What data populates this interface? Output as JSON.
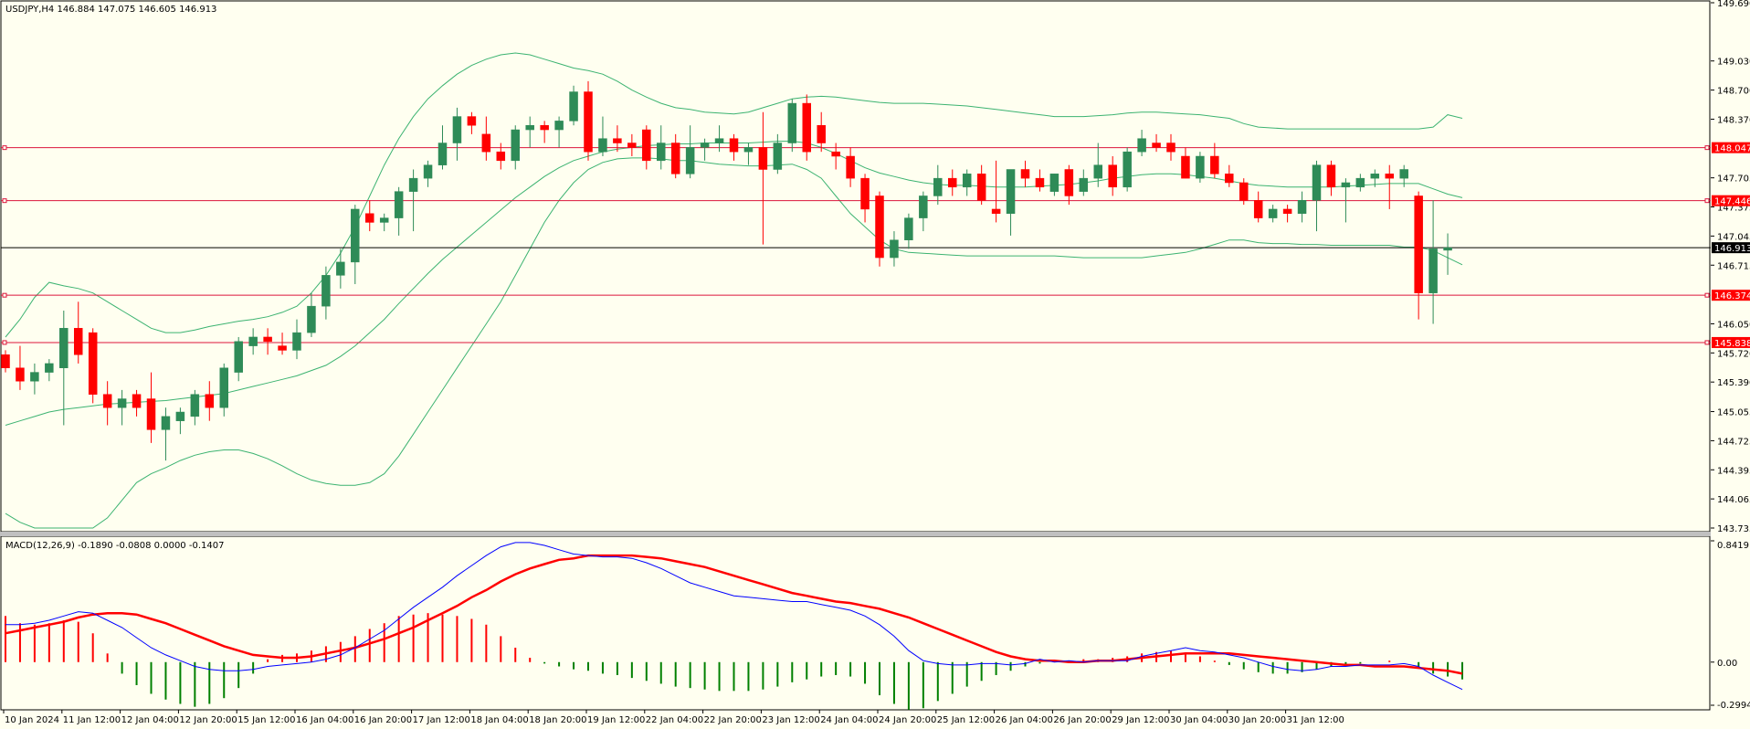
{
  "window": {
    "header": "USDJPY,H4  146.884 147.075 146.605 146.913",
    "macd_header": "MACD(12,26,9) -0.1890 -0.0808 0.0000 -0.1407"
  },
  "colors": {
    "background": "#FFFFF0",
    "bull": "#2E8B57",
    "bear": "#FF0000",
    "bands": "#3CB371",
    "hline": "#DC143C",
    "tag_bg": "#FF0000",
    "current_bg": "#000000",
    "macd_main": "#0000FF",
    "macd_signal": "#FF0000",
    "hist_pos": "#FF0000",
    "hist_neg": "#008000"
  },
  "chart_data": {
    "type": "candlestick",
    "symbol": "USDJPY",
    "timeframe": "H4",
    "ylim": [
      143.735,
      149.69
    ],
    "price_ticks": [
      "149.690",
      "149.030",
      "148.700",
      "148.370",
      "147.705",
      "147.375",
      "147.045",
      "146.715",
      "146.050",
      "145.720",
      "145.390",
      "145.055",
      "144.725",
      "144.395",
      "144.065",
      "143.735"
    ],
    "horizontal_levels": [
      {
        "value": 148.047,
        "label": "148.047"
      },
      {
        "value": 147.446,
        "label": "147.446"
      },
      {
        "value": 146.374,
        "label": "146.374"
      },
      {
        "value": 145.838,
        "label": "145.838"
      }
    ],
    "current_price": {
      "value": 146.913,
      "label": "146.913"
    },
    "time_labels": [
      "10 Jan 2024",
      "11 Jan 12:00",
      "12 Jan 04:00",
      "12 Jan 20:00",
      "15 Jan 12:00",
      "16 Jan 04:00",
      "16 Jan 20:00",
      "17 Jan 12:00",
      "18 Jan 04:00",
      "18 Jan 20:00",
      "19 Jan 12:00",
      "22 Jan 04:00",
      "22 Jan 20:00",
      "23 Jan 12:00",
      "24 Jan 04:00",
      "24 Jan 20:00",
      "25 Jan 12:00",
      "26 Jan 04:00",
      "26 Jan 20:00",
      "29 Jan 12:00",
      "30 Jan 04:00",
      "30 Jan 20:00",
      "31 Jan 12:00"
    ],
    "candles": [
      [
        145.7,
        145.75,
        145.5,
        145.55
      ],
      [
        145.55,
        145.8,
        145.3,
        145.4
      ],
      [
        145.4,
        145.6,
        145.25,
        145.5
      ],
      [
        145.5,
        145.65,
        145.4,
        145.6
      ],
      [
        145.55,
        146.2,
        144.9,
        146.0
      ],
      [
        146.0,
        146.3,
        145.6,
        145.7
      ],
      [
        145.95,
        146.0,
        145.15,
        145.25
      ],
      [
        145.25,
        145.4,
        144.9,
        145.1
      ],
      [
        145.1,
        145.3,
        144.9,
        145.2
      ],
      [
        145.25,
        145.3,
        145.0,
        145.1
      ],
      [
        145.2,
        145.5,
        144.7,
        144.85
      ],
      [
        144.85,
        145.1,
        144.5,
        145.0
      ],
      [
        144.95,
        145.1,
        144.8,
        145.05
      ],
      [
        145.0,
        145.3,
        144.9,
        145.25
      ],
      [
        145.25,
        145.4,
        144.95,
        145.1
      ],
      [
        145.1,
        145.6,
        145.0,
        145.55
      ],
      [
        145.5,
        145.9,
        145.4,
        145.85
      ],
      [
        145.8,
        146.0,
        145.7,
        145.9
      ],
      [
        145.9,
        146.0,
        145.7,
        145.85
      ],
      [
        145.8,
        145.95,
        145.7,
        145.75
      ],
      [
        145.75,
        146.1,
        145.65,
        145.95
      ],
      [
        145.95,
        146.4,
        145.9,
        146.25
      ],
      [
        146.25,
        146.7,
        146.1,
        146.6
      ],
      [
        146.6,
        146.9,
        146.45,
        146.75
      ],
      [
        146.75,
        147.4,
        146.5,
        147.35
      ],
      [
        147.3,
        147.45,
        147.1,
        147.2
      ],
      [
        147.2,
        147.3,
        147.1,
        147.25
      ],
      [
        147.25,
        147.6,
        147.05,
        147.55
      ],
      [
        147.55,
        147.8,
        147.1,
        147.7
      ],
      [
        147.7,
        147.9,
        147.6,
        147.85
      ],
      [
        147.85,
        148.3,
        147.8,
        148.1
      ],
      [
        148.1,
        148.5,
        147.9,
        148.4
      ],
      [
        148.4,
        148.45,
        148.2,
        148.3
      ],
      [
        148.2,
        148.4,
        147.9,
        148.0
      ],
      [
        148.0,
        148.1,
        147.8,
        147.9
      ],
      [
        147.9,
        148.3,
        147.8,
        148.25
      ],
      [
        148.25,
        148.4,
        148.05,
        148.3
      ],
      [
        148.3,
        148.35,
        148.1,
        148.25
      ],
      [
        148.25,
        148.4,
        148.05,
        148.35
      ],
      [
        148.35,
        148.75,
        148.3,
        148.68
      ],
      [
        148.68,
        148.8,
        147.9,
        148.0
      ],
      [
        148.0,
        148.4,
        147.95,
        148.15
      ],
      [
        148.15,
        148.3,
        148.0,
        148.1
      ],
      [
        148.1,
        148.2,
        147.95,
        148.05
      ],
      [
        148.25,
        148.3,
        147.8,
        147.9
      ],
      [
        147.9,
        148.3,
        147.8,
        148.1
      ],
      [
        148.1,
        148.2,
        147.7,
        147.75
      ],
      [
        147.75,
        148.3,
        147.7,
        148.05
      ],
      [
        148.05,
        148.15,
        147.9,
        148.1
      ],
      [
        148.1,
        148.3,
        148.0,
        148.15
      ],
      [
        148.15,
        148.2,
        147.9,
        148.0
      ],
      [
        148.0,
        148.1,
        147.85,
        148.05
      ],
      [
        148.05,
        148.45,
        146.95,
        147.8
      ],
      [
        147.8,
        148.2,
        147.75,
        148.1
      ],
      [
        148.1,
        148.6,
        148.0,
        148.55
      ],
      [
        148.55,
        148.65,
        147.9,
        148.0
      ],
      [
        148.3,
        148.45,
        148.0,
        148.1
      ],
      [
        148.0,
        148.1,
        147.8,
        147.95
      ],
      [
        147.95,
        148.05,
        147.6,
        147.7
      ],
      [
        147.7,
        147.75,
        147.2,
        147.35
      ],
      [
        147.5,
        147.55,
        146.7,
        146.8
      ],
      [
        146.8,
        147.1,
        146.7,
        147.0
      ],
      [
        147.0,
        147.3,
        146.9,
        147.25
      ],
      [
        147.25,
        147.55,
        147.1,
        147.5
      ],
      [
        147.5,
        147.85,
        147.4,
        147.7
      ],
      [
        147.7,
        147.8,
        147.5,
        147.6
      ],
      [
        147.6,
        147.8,
        147.5,
        147.75
      ],
      [
        147.75,
        147.85,
        147.4,
        147.45
      ],
      [
        147.35,
        147.9,
        147.2,
        147.3
      ],
      [
        147.3,
        147.8,
        147.05,
        147.8
      ],
      [
        147.8,
        147.9,
        147.6,
        147.7
      ],
      [
        147.7,
        147.8,
        147.55,
        147.6
      ],
      [
        147.55,
        147.75,
        147.5,
        147.75
      ],
      [
        147.8,
        147.85,
        147.4,
        147.5
      ],
      [
        147.55,
        147.8,
        147.5,
        147.7
      ],
      [
        147.7,
        148.1,
        147.6,
        147.85
      ],
      [
        147.85,
        147.95,
        147.5,
        147.6
      ],
      [
        147.6,
        148.05,
        147.55,
        148.0
      ],
      [
        148.0,
        148.25,
        147.95,
        148.15
      ],
      [
        148.1,
        148.2,
        148.0,
        148.05
      ],
      [
        148.1,
        148.2,
        147.9,
        148.0
      ],
      [
        147.95,
        148.05,
        147.7,
        147.7
      ],
      [
        147.7,
        148.0,
        147.65,
        147.95
      ],
      [
        147.95,
        148.1,
        147.7,
        147.75
      ],
      [
        147.75,
        147.85,
        147.6,
        147.65
      ],
      [
        147.65,
        147.7,
        147.4,
        147.45
      ],
      [
        147.45,
        147.55,
        147.2,
        147.25
      ],
      [
        147.25,
        147.4,
        147.2,
        147.35
      ],
      [
        147.35,
        147.4,
        147.2,
        147.3
      ],
      [
        147.3,
        147.55,
        147.2,
        147.45
      ],
      [
        147.45,
        147.9,
        147.1,
        147.85
      ],
      [
        147.85,
        147.9,
        147.5,
        147.6
      ],
      [
        147.6,
        147.7,
        147.2,
        147.65
      ],
      [
        147.6,
        147.75,
        147.55,
        147.7
      ],
      [
        147.7,
        147.8,
        147.6,
        147.75
      ],
      [
        147.75,
        147.85,
        147.35,
        147.7
      ],
      [
        147.7,
        147.85,
        147.6,
        147.8
      ],
      [
        147.5,
        147.55,
        146.1,
        146.4
      ],
      [
        146.4,
        147.45,
        146.05,
        146.9
      ],
      [
        146.884,
        147.075,
        146.605,
        146.913
      ]
    ],
    "bollinger": {
      "period": 20,
      "upper": [
        145.9,
        146.1,
        146.35,
        146.52,
        146.48,
        146.45,
        146.4,
        146.3,
        146.2,
        146.1,
        146.0,
        145.95,
        145.95,
        145.98,
        146.02,
        146.05,
        146.08,
        146.1,
        146.13,
        146.18,
        146.25,
        146.4,
        146.6,
        146.85,
        147.15,
        147.5,
        147.85,
        148.15,
        148.4,
        148.6,
        148.75,
        148.88,
        148.98,
        149.05,
        149.1,
        149.12,
        149.1,
        149.05,
        149.0,
        148.95,
        148.92,
        148.88,
        148.8,
        148.7,
        148.62,
        148.55,
        148.5,
        148.48,
        148.45,
        148.44,
        148.43,
        148.45,
        148.5,
        148.55,
        148.6,
        148.62,
        148.63,
        148.62,
        148.6,
        148.58,
        148.56,
        148.55,
        148.55,
        148.55,
        148.54,
        148.53,
        148.52,
        148.5,
        148.48,
        148.46,
        148.44,
        148.42,
        148.4,
        148.4,
        148.4,
        148.41,
        148.42,
        148.44,
        148.45,
        148.45,
        148.44,
        148.43,
        148.42,
        148.4,
        148.38,
        148.32,
        148.28,
        148.27,
        148.26,
        148.26,
        148.26,
        148.26,
        148.26,
        148.26,
        148.26,
        148.26,
        148.26,
        148.26,
        148.28,
        148.42,
        148.38
      ],
      "middle": [
        144.9,
        144.95,
        145.0,
        145.05,
        145.08,
        145.1,
        145.12,
        145.14,
        145.15,
        145.16,
        145.17,
        145.18,
        145.2,
        145.22,
        145.24,
        145.26,
        145.3,
        145.34,
        145.38,
        145.42,
        145.46,
        145.52,
        145.58,
        145.68,
        145.8,
        145.95,
        146.1,
        146.28,
        146.45,
        146.62,
        146.78,
        146.92,
        147.06,
        147.2,
        147.34,
        147.48,
        147.6,
        147.72,
        147.82,
        147.9,
        147.95,
        148.0,
        148.03,
        148.05,
        148.07,
        148.08,
        148.09,
        148.09,
        148.1,
        148.1,
        148.1,
        148.1,
        148.11,
        148.12,
        148.12,
        148.1,
        148.05,
        147.98,
        147.9,
        147.82,
        147.76,
        147.72,
        147.68,
        147.65,
        147.63,
        147.62,
        147.62,
        147.61,
        147.6,
        147.6,
        147.6,
        147.61,
        147.62,
        147.63,
        147.65,
        147.67,
        147.7,
        147.72,
        147.74,
        147.75,
        147.75,
        147.74,
        147.72,
        147.7,
        147.67,
        147.64,
        147.62,
        147.61,
        147.6,
        147.6,
        147.6,
        147.6,
        147.61,
        147.62,
        147.63,
        147.64,
        147.64,
        147.64,
        147.58,
        147.52,
        147.48
      ],
      "lower": [
        143.9,
        143.8,
        143.65,
        143.55,
        143.55,
        143.6,
        143.7,
        143.85,
        144.05,
        144.25,
        144.35,
        144.42,
        144.5,
        144.56,
        144.6,
        144.62,
        144.62,
        144.58,
        144.52,
        144.44,
        144.35,
        144.28,
        144.24,
        144.22,
        144.22,
        144.25,
        144.35,
        144.55,
        144.8,
        145.05,
        145.3,
        145.55,
        145.8,
        146.05,
        146.3,
        146.6,
        146.9,
        147.2,
        147.45,
        147.65,
        147.8,
        147.88,
        147.92,
        147.93,
        147.93,
        147.92,
        147.9,
        147.9,
        147.88,
        147.86,
        147.85,
        147.84,
        147.84,
        147.85,
        147.86,
        147.8,
        147.7,
        147.5,
        147.3,
        147.15,
        147.0,
        146.9,
        146.86,
        146.85,
        146.84,
        146.83,
        146.82,
        146.82,
        146.82,
        146.82,
        146.82,
        146.82,
        146.82,
        146.81,
        146.8,
        146.8,
        146.8,
        146.8,
        146.8,
        146.82,
        146.84,
        146.86,
        146.9,
        146.95,
        147.0,
        147.0,
        146.97,
        146.96,
        146.96,
        146.95,
        146.95,
        146.94,
        146.94,
        146.94,
        146.94,
        146.94,
        146.92,
        146.92,
        146.88,
        146.8,
        146.72
      ]
    },
    "macd": {
      "ylim": [
        -0.2994,
        0.8419
      ],
      "ticks": [
        "0.8419",
        "0.00",
        "-0.2994"
      ],
      "main": [
        0.26,
        0.26,
        0.27,
        0.29,
        0.32,
        0.35,
        0.34,
        0.29,
        0.24,
        0.17,
        0.1,
        0.05,
        0.01,
        -0.03,
        -0.05,
        -0.06,
        -0.06,
        -0.05,
        -0.03,
        -0.02,
        -0.01,
        0.0,
        0.02,
        0.05,
        0.1,
        0.16,
        0.22,
        0.3,
        0.38,
        0.45,
        0.52,
        0.6,
        0.67,
        0.74,
        0.8,
        0.83,
        0.83,
        0.81,
        0.78,
        0.75,
        0.74,
        0.73,
        0.73,
        0.72,
        0.69,
        0.65,
        0.6,
        0.55,
        0.52,
        0.49,
        0.46,
        0.45,
        0.44,
        0.43,
        0.42,
        0.42,
        0.4,
        0.38,
        0.36,
        0.32,
        0.26,
        0.18,
        0.08,
        0.01,
        -0.01,
        -0.02,
        -0.02,
        -0.01,
        -0.01,
        -0.02,
        -0.01,
        0.02,
        0.0,
        0.01,
        0.0,
        0.01,
        0.01,
        0.01,
        0.04,
        0.06,
        0.08,
        0.1,
        0.08,
        0.07,
        0.05,
        0.03,
        0.0,
        -0.03,
        -0.05,
        -0.06,
        -0.05,
        -0.03,
        -0.03,
        -0.02,
        -0.02,
        -0.02,
        -0.01,
        -0.03,
        -0.09,
        -0.14,
        -0.19
      ],
      "signal": [
        0.2,
        0.22,
        0.24,
        0.26,
        0.28,
        0.31,
        0.33,
        0.34,
        0.34,
        0.33,
        0.3,
        0.27,
        0.23,
        0.19,
        0.15,
        0.11,
        0.08,
        0.05,
        0.04,
        0.03,
        0.03,
        0.04,
        0.06,
        0.08,
        0.1,
        0.13,
        0.16,
        0.2,
        0.24,
        0.29,
        0.34,
        0.39,
        0.45,
        0.5,
        0.56,
        0.61,
        0.65,
        0.68,
        0.71,
        0.72,
        0.74,
        0.74,
        0.74,
        0.74,
        0.73,
        0.72,
        0.7,
        0.68,
        0.66,
        0.63,
        0.6,
        0.57,
        0.54,
        0.51,
        0.48,
        0.46,
        0.44,
        0.42,
        0.41,
        0.39,
        0.37,
        0.34,
        0.31,
        0.27,
        0.23,
        0.19,
        0.15,
        0.11,
        0.07,
        0.04,
        0.02,
        0.01,
        0.01,
        0.0,
        0.0,
        0.01,
        0.01,
        0.02,
        0.03,
        0.04,
        0.05,
        0.06,
        0.06,
        0.06,
        0.06,
        0.05,
        0.04,
        0.03,
        0.02,
        0.01,
        0.0,
        -0.01,
        -0.02,
        -0.02,
        -0.03,
        -0.03,
        -0.03,
        -0.04,
        -0.05,
        -0.06,
        -0.08
      ],
      "histogram": [
        0.32,
        0.27,
        0.26,
        0.27,
        0.29,
        0.28,
        0.2,
        0.06,
        -0.08,
        -0.16,
        -0.22,
        -0.26,
        -0.29,
        -0.31,
        -0.29,
        -0.25,
        -0.18,
        -0.08,
        0.02,
        0.05,
        0.06,
        0.08,
        0.11,
        0.14,
        0.18,
        0.23,
        0.27,
        0.32,
        0.33,
        0.34,
        0.33,
        0.32,
        0.3,
        0.26,
        0.18,
        0.1,
        0.03,
        -0.01,
        -0.03,
        -0.05,
        -0.06,
        -0.08,
        -0.09,
        -0.11,
        -0.13,
        -0.15,
        -0.17,
        -0.18,
        -0.19,
        -0.2,
        -0.2,
        -0.2,
        -0.19,
        -0.17,
        -0.14,
        -0.12,
        -0.1,
        -0.09,
        -0.1,
        -0.15,
        -0.23,
        -0.29,
        -0.33,
        -0.32,
        -0.27,
        -0.22,
        -0.17,
        -0.13,
        -0.09,
        -0.06,
        -0.03,
        -0.01,
        0.0,
        0.01,
        0.02,
        0.02,
        0.03,
        0.04,
        0.06,
        0.07,
        0.08,
        0.06,
        0.04,
        0.01,
        -0.02,
        -0.05,
        -0.07,
        -0.08,
        -0.08,
        -0.07,
        -0.05,
        -0.03,
        -0.02,
        -0.01,
        0.0,
        0.01,
        0.0,
        -0.04,
        -0.08,
        -0.1,
        -0.12
      ]
    }
  }
}
